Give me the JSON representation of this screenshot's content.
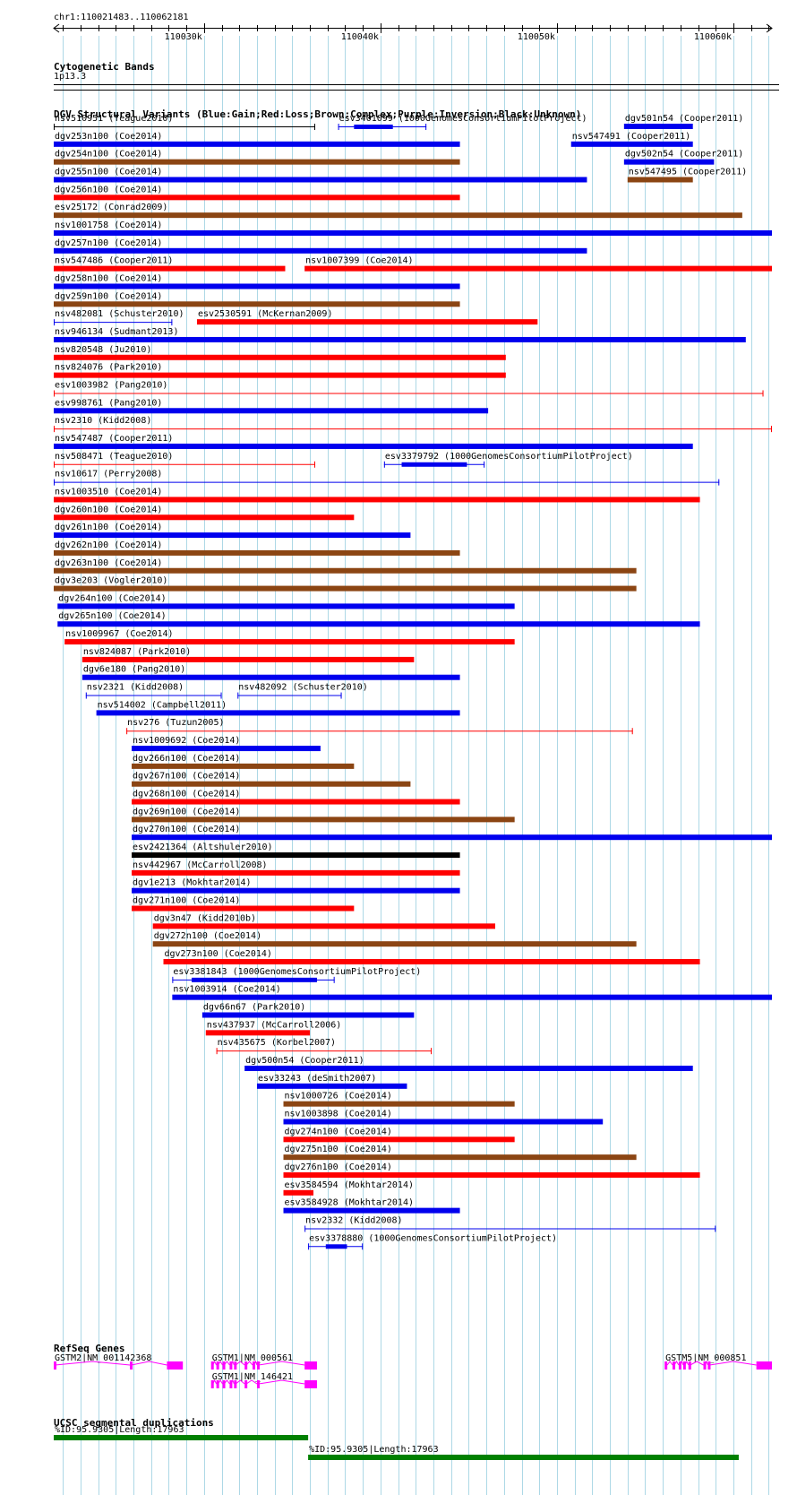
{
  "browser": {
    "position": "chr1:110021483..110062181",
    "region_start": 110021483,
    "region_end": 110062181,
    "ruler_ticks": [
      {
        "pos": 110030000,
        "label": "110030k"
      },
      {
        "pos": 110040000,
        "label": "110040k"
      },
      {
        "pos": 110050000,
        "label": "110050k"
      },
      {
        "pos": 110060000,
        "label": "110060k"
      }
    ]
  },
  "colors": {
    "blue": "#0000ee",
    "red": "#ff0000",
    "brown": "#8b4513",
    "purple": "#800080",
    "black": "#000000",
    "magenta": "#ff00ff",
    "green": "#008000",
    "grid": "#add8e6"
  },
  "tracks": {
    "cytoband": {
      "title": "Cytogenetic Bands",
      "band": "1p13.3"
    },
    "dgv": {
      "title": "DGV Structural Variants (Blue:Gain;Red:Loss;Brown:Complex;Purple:Inversion;Black:Unknown)",
      "features": [
        {
          "name": "nsv510951 (Teague2010)",
          "start": 110021483,
          "end": 110036300,
          "color": "black",
          "style": "thin",
          "row": 0
        },
        {
          "name": "esv3401099 (1000GenomesConsortiumPilotProject)",
          "start": 110037600,
          "end": 110042600,
          "color": "blue",
          "style": "segments",
          "segments": [
            [
              110038500,
              110040700
            ]
          ],
          "row": 0
        },
        {
          "name": "dgv501n54 (Cooper2011)",
          "start": 110053800,
          "end": 110057700,
          "color": "blue",
          "style": "thick",
          "row": 0
        },
        {
          "name": "dgv253n100 (Coe2014)",
          "start": 110021483,
          "end": 110044500,
          "color": "blue",
          "style": "thick",
          "row": 1
        },
        {
          "name": "nsv547491 (Cooper2011)",
          "start": 110050800,
          "end": 110057700,
          "color": "blue",
          "style": "thick",
          "row": 1
        },
        {
          "name": "dgv254n100 (Coe2014)",
          "start": 110021483,
          "end": 110044500,
          "color": "brown",
          "style": "thick",
          "row": 2
        },
        {
          "name": "dgv502n54 (Cooper2011)",
          "start": 110053800,
          "end": 110058900,
          "color": "blue",
          "style": "thick",
          "row": 2
        },
        {
          "name": "dgv255n100 (Coe2014)",
          "start": 110021483,
          "end": 110051700,
          "color": "blue",
          "style": "thick",
          "row": 3
        },
        {
          "name": "nsv547495 (Cooper2011)",
          "start": 110054000,
          "end": 110057700,
          "color": "brown",
          "style": "thick",
          "row": 3
        },
        {
          "name": "dgv256n100 (Coe2014)",
          "start": 110021483,
          "end": 110044500,
          "color": "red",
          "style": "thick",
          "row": 4
        },
        {
          "name": "esv25172 (Conrad2009)",
          "start": 110021483,
          "end": 110060500,
          "color": "brown",
          "style": "thick",
          "row": 5
        },
        {
          "name": "nsv1001758 (Coe2014)",
          "start": 110021483,
          "end": 110062181,
          "color": "blue",
          "style": "thick",
          "row": 6
        },
        {
          "name": "dgv257n100 (Coe2014)",
          "start": 110021483,
          "end": 110051700,
          "color": "blue",
          "style": "thick",
          "row": 7
        },
        {
          "name": "nsv547486 (Cooper2011)",
          "start": 110021483,
          "end": 110034600,
          "color": "red",
          "style": "thick",
          "row": 8
        },
        {
          "name": "nsv1007399 (Coe2014)",
          "start": 110035700,
          "end": 110062181,
          "color": "red",
          "style": "thick",
          "row": 8
        },
        {
          "name": "dgv258n100 (Coe2014)",
          "start": 110021483,
          "end": 110044500,
          "color": "blue",
          "style": "thick",
          "row": 9
        },
        {
          "name": "dgv259n100 (Coe2014)",
          "start": 110021483,
          "end": 110044500,
          "color": "brown",
          "style": "thick",
          "row": 10
        },
        {
          "name": "nsv482081 (Schuster2010)",
          "start": 110021483,
          "end": 110028200,
          "color": "blue",
          "style": "thin",
          "row": 11
        },
        {
          "name": "esv2530591 (McKernan2009)",
          "start": 110029600,
          "end": 110048900,
          "color": "red",
          "style": "thick",
          "row": 11
        },
        {
          "name": "nsv946134 (Sudmant2013)",
          "start": 110021483,
          "end": 110060700,
          "color": "blue",
          "style": "thick",
          "row": 12
        },
        {
          "name": "nsv820548 (Ju2010)",
          "start": 110021483,
          "end": 110047100,
          "color": "red",
          "style": "thick",
          "row": 13
        },
        {
          "name": "nsv824076 (Park2010)",
          "start": 110021483,
          "end": 110047100,
          "color": "red",
          "style": "thick",
          "row": 14
        },
        {
          "name": "esv1003982 (Pang2010)",
          "start": 110021483,
          "end": 110061700,
          "color": "red",
          "style": "thin",
          "row": 15
        },
        {
          "name": "esv998761 (Pang2010)",
          "start": 110021483,
          "end": 110046100,
          "color": "blue",
          "style": "thick",
          "row": 16
        },
        {
          "name": "nsv2310 (Kidd2008)",
          "start": 110021483,
          "end": 110062181,
          "color": "red",
          "style": "thin",
          "row": 17
        },
        {
          "name": "nsv547487 (Cooper2011)",
          "start": 110021483,
          "end": 110057700,
          "color": "blue",
          "style": "thick",
          "row": 18
        },
        {
          "name": "nsv508471 (Teague2010)",
          "start": 110021483,
          "end": 110036300,
          "color": "red",
          "style": "thin",
          "row": 19
        },
        {
          "name": "esv3379792 (1000GenomesConsortiumPilotProject)",
          "start": 110040200,
          "end": 110045900,
          "color": "blue",
          "style": "segments",
          "segments": [
            [
              110041200,
              110044900
            ]
          ],
          "row": 19
        },
        {
          "name": "nsv10617 (Perry2008)",
          "start": 110021483,
          "end": 110059200,
          "color": "blue",
          "style": "thin",
          "row": 20
        },
        {
          "name": "nsv1003510 (Coe2014)",
          "start": 110021483,
          "end": 110058100,
          "color": "red",
          "style": "thick",
          "row": 21
        },
        {
          "name": "dgv260n100 (Coe2014)",
          "start": 110021483,
          "end": 110038500,
          "color": "red",
          "style": "thick",
          "row": 22
        },
        {
          "name": "dgv261n100 (Coe2014)",
          "start": 110021483,
          "end": 110041700,
          "color": "blue",
          "style": "thick",
          "row": 23
        },
        {
          "name": "dgv262n100 (Coe2014)",
          "start": 110021483,
          "end": 110044500,
          "color": "brown",
          "style": "thick",
          "row": 24
        },
        {
          "name": "dgv263n100 (Coe2014)",
          "start": 110021483,
          "end": 110054500,
          "color": "brown",
          "style": "thick",
          "row": 25
        },
        {
          "name": "dgv3e203 (Vogler2010)",
          "start": 110021483,
          "end": 110054500,
          "color": "brown",
          "style": "thick",
          "row": 26
        },
        {
          "name": "dgv264n100 (Coe2014)",
          "start": 110021700,
          "end": 110047600,
          "color": "blue",
          "style": "thick",
          "row": 27
        },
        {
          "name": "dgv265n100 (Coe2014)",
          "start": 110021700,
          "end": 110058100,
          "color": "blue",
          "style": "thick",
          "row": 28
        },
        {
          "name": "nsv1009967 (Coe2014)",
          "start": 110022100,
          "end": 110047600,
          "color": "red",
          "style": "thick",
          "row": 29
        },
        {
          "name": "nsv824087 (Park2010)",
          "start": 110023100,
          "end": 110041900,
          "color": "red",
          "style": "thick",
          "row": 30
        },
        {
          "name": "dgv6e180 (Pang2010)",
          "start": 110023100,
          "end": 110044500,
          "color": "blue",
          "style": "thick",
          "row": 31
        },
        {
          "name": "nsv2321 (Kidd2008)",
          "start": 110023300,
          "end": 110031000,
          "color": "blue",
          "style": "thin",
          "row": 32
        },
        {
          "name": "nsv482092 (Schuster2010)",
          "start": 110031900,
          "end": 110037800,
          "color": "blue",
          "style": "thin",
          "row": 32
        },
        {
          "name": "nsv514002 (Campbell2011)",
          "start": 110023900,
          "end": 110044500,
          "color": "blue",
          "style": "thick",
          "row": 33
        },
        {
          "name": "nsv276 (Tuzun2005)",
          "start": 110025600,
          "end": 110054300,
          "color": "red",
          "style": "thin",
          "row": 34
        },
        {
          "name": "nsv1009692 (Coe2014)",
          "start": 110025900,
          "end": 110036600,
          "color": "blue",
          "style": "thick",
          "row": 35
        },
        {
          "name": "dgv266n100 (Coe2014)",
          "start": 110025900,
          "end": 110038500,
          "color": "brown",
          "style": "thick",
          "row": 36
        },
        {
          "name": "dgv267n100 (Coe2014)",
          "start": 110025900,
          "end": 110041700,
          "color": "brown",
          "style": "thick",
          "row": 37
        },
        {
          "name": "dgv268n100 (Coe2014)",
          "start": 110025900,
          "end": 110044500,
          "color": "red",
          "style": "thick",
          "row": 38
        },
        {
          "name": "dgv269n100 (Coe2014)",
          "start": 110025900,
          "end": 110047600,
          "color": "brown",
          "style": "thick",
          "row": 39
        },
        {
          "name": "dgv270n100 (Coe2014)",
          "start": 110025900,
          "end": 110062181,
          "color": "blue",
          "style": "thick",
          "row": 40
        },
        {
          "name": "esv2421364 (Altshuler2010)",
          "start": 110025900,
          "end": 110044500,
          "color": "black",
          "style": "thick",
          "row": 41
        },
        {
          "name": "nsv442967 (McCarroll2008)",
          "start": 110025900,
          "end": 110044500,
          "color": "red",
          "style": "thick",
          "row": 42
        },
        {
          "name": "dgv1e213 (Mokhtar2014)",
          "start": 110025900,
          "end": 110044500,
          "color": "blue",
          "style": "thick",
          "row": 43
        },
        {
          "name": "dgv271n100 (Coe2014)",
          "start": 110025900,
          "end": 110038500,
          "color": "red",
          "style": "thick",
          "row": 44
        },
        {
          "name": "dgv3n47 (Kidd2010b)",
          "start": 110027100,
          "end": 110046500,
          "color": "red",
          "style": "thick",
          "row": 45
        },
        {
          "name": "dgv272n100 (Coe2014)",
          "start": 110027100,
          "end": 110054500,
          "color": "brown",
          "style": "thick",
          "row": 46
        },
        {
          "name": "dgv273n100 (Coe2014)",
          "start": 110027700,
          "end": 110058100,
          "color": "red",
          "style": "thick",
          "row": 47
        },
        {
          "name": "esv3381843 (1000GenomesConsortiumPilotProject)",
          "start": 110028200,
          "end": 110037400,
          "color": "blue",
          "style": "segments",
          "segments": [
            [
              110029300,
              110036400
            ]
          ],
          "row": 48
        },
        {
          "name": "nsv1003914 (Coe2014)",
          "start": 110028200,
          "end": 110062181,
          "color": "blue",
          "style": "thick",
          "row": 49
        },
        {
          "name": "dgv66n67 (Park2010)",
          "start": 110029900,
          "end": 110041900,
          "color": "blue",
          "style": "thick",
          "row": 50
        },
        {
          "name": "nsv437937 (McCarroll2006)",
          "start": 110030100,
          "end": 110036000,
          "color": "red",
          "style": "thick",
          "row": 51
        },
        {
          "name": "nsv435675 (Korbel2007)",
          "start": 110030700,
          "end": 110042900,
          "color": "red",
          "style": "thin",
          "row": 52
        },
        {
          "name": "dgv500n54 (Cooper2011)",
          "start": 110032300,
          "end": 110057700,
          "color": "blue",
          "style": "thick",
          "row": 53
        },
        {
          "name": "esv33243 (deSmith2007)",
          "start": 110033000,
          "end": 110041500,
          "color": "blue",
          "style": "thick",
          "row": 54
        },
        {
          "name": "nsv1000726 (Coe2014)",
          "start": 110034500,
          "end": 110047600,
          "color": "brown",
          "style": "thick",
          "row": 55
        },
        {
          "name": "nsv1003898 (Coe2014)",
          "start": 110034500,
          "end": 110052600,
          "color": "blue",
          "style": "thick",
          "row": 56
        },
        {
          "name": "dgv274n100 (Coe2014)",
          "start": 110034500,
          "end": 110047600,
          "color": "red",
          "style": "thick",
          "row": 57
        },
        {
          "name": "dgv275n100 (Coe2014)",
          "start": 110034500,
          "end": 110054500,
          "color": "brown",
          "style": "thick",
          "row": 58
        },
        {
          "name": "dgv276n100 (Coe2014)",
          "start": 110034500,
          "end": 110058100,
          "color": "red",
          "style": "thick",
          "row": 59
        },
        {
          "name": "esv3584594 (Mokhtar2014)",
          "start": 110034500,
          "end": 110036200,
          "color": "red",
          "style": "thick",
          "row": 60
        },
        {
          "name": "esv3584928 (Mokhtar2014)",
          "start": 110034500,
          "end": 110044500,
          "color": "blue",
          "style": "thick",
          "row": 61
        },
        {
          "name": "nsv2332 (Kidd2008)",
          "start": 110035700,
          "end": 110059000,
          "color": "blue",
          "style": "thin",
          "row": 62
        },
        {
          "name": "esv3378880 (1000GenomesConsortiumPilotProject)",
          "start": 110035900,
          "end": 110039000,
          "color": "blue",
          "style": "segments",
          "segments": [
            [
              110036900,
              110038100
            ]
          ],
          "row": 63
        }
      ]
    },
    "refseq": {
      "title": "RefSeq Genes",
      "genes": [
        {
          "name": "GSTM2|NM_001142368",
          "start": 110021483,
          "end": 110028800,
          "color": "magenta",
          "row": 0,
          "exons": [
            [
              110021483,
              110021560
            ],
            [
              110025800,
              110025880
            ],
            [
              110027900,
              110028800
            ]
          ]
        },
        {
          "name": "GSTM1|NM_000561",
          "start": 110030400,
          "end": 110036400,
          "color": "magenta",
          "row": 0,
          "exons": [
            [
              110030400,
              110030500
            ],
            [
              110030700,
              110030800
            ],
            [
              110031050,
              110031150
            ],
            [
              110031450,
              110031550
            ],
            [
              110031700,
              110031800
            ],
            [
              110032300,
              110032400
            ],
            [
              110032750,
              110032850
            ],
            [
              110033000,
              110033100
            ],
            [
              110035700,
              110036400
            ]
          ]
        },
        {
          "name": "GSTM1|NM_146421",
          "start": 110030400,
          "end": 110036400,
          "color": "magenta",
          "row": 1,
          "exons": [
            [
              110030400,
              110030500
            ],
            [
              110030700,
              110030800
            ],
            [
              110031050,
              110031150
            ],
            [
              110031450,
              110031550
            ],
            [
              110031700,
              110031800
            ],
            [
              110032300,
              110032400
            ],
            [
              110033000,
              110033100
            ],
            [
              110035700,
              110036400
            ]
          ]
        },
        {
          "name": "GSTM5|NM_000851",
          "start": 110056100,
          "end": 110062181,
          "color": "magenta",
          "row": 0,
          "exons": [
            [
              110056100,
              110056250
            ],
            [
              110056550,
              110056650
            ],
            [
              110056900,
              110057000
            ],
            [
              110057150,
              110057250
            ],
            [
              110057450,
              110057550
            ],
            [
              110058300,
              110058400
            ],
            [
              110058550,
              110058650
            ],
            [
              110061300,
              110062181
            ]
          ]
        }
      ]
    },
    "segdups": {
      "title": "UCSC segmental duplications",
      "features": [
        {
          "name": "%ID:95.9305|Length:17963",
          "start": 110021483,
          "end": 110035900,
          "color": "green",
          "row": 0
        },
        {
          "name": "%ID:95.9305|Length:17963",
          "start": 110035900,
          "end": 110060300,
          "color": "green",
          "row": 1
        }
      ]
    }
  }
}
